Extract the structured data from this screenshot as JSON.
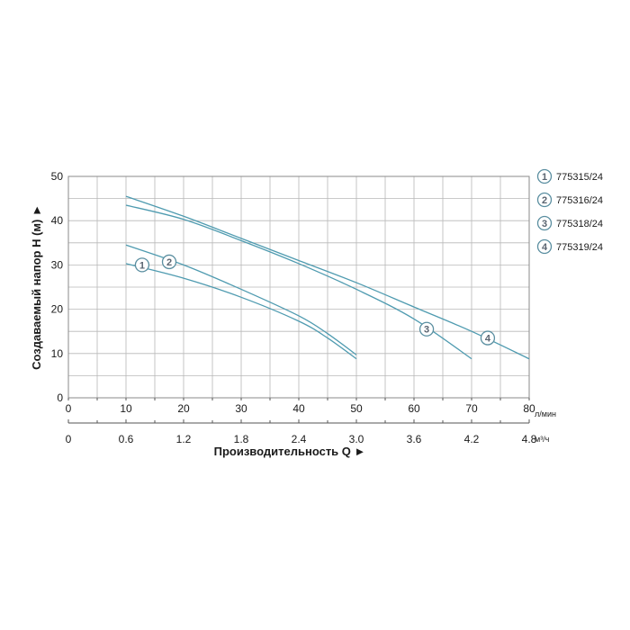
{
  "chart_data": {
    "type": "line",
    "ylabel": "Создаваемый напор Н (м) ►",
    "xlabel": "Производительность Q ►",
    "x_unit_primary": "л/мин",
    "x_unit_secondary": "м³/ч",
    "xlim": [
      0,
      80
    ],
    "ylim": [
      0,
      50
    ],
    "x_ticks_primary": [
      "0",
      "10",
      "20",
      "30",
      "40",
      "50",
      "60",
      "70",
      "80"
    ],
    "x_ticks_secondary": [
      "0",
      "0.6",
      "1.2",
      "1.8",
      "2.4",
      "3.0",
      "3.6",
      "4.2",
      "4.8"
    ],
    "x_ticks_secondary_values": [
      0,
      10,
      20,
      30,
      40,
      50,
      60,
      70,
      80
    ],
    "y_ticks": [
      "0",
      "10",
      "20",
      "30",
      "40",
      "50"
    ],
    "grid": true,
    "legend_position": "right",
    "colors": {
      "curve": "#4f9bb0",
      "marker_stroke": "#5a8ea0",
      "grid": "#b8b8b8"
    },
    "series": [
      {
        "name": "775315/24",
        "marker": "1",
        "marker_at": [
          12.8,
          30.0
        ],
        "x": [
          10,
          20,
          30,
          40,
          45,
          50
        ],
        "y": [
          30.3,
          27.0,
          22.7,
          17.3,
          13.5,
          8.8
        ]
      },
      {
        "name": "775316/24",
        "marker": "2",
        "marker_at": [
          17.5,
          30.7
        ],
        "x": [
          10,
          20,
          30,
          40,
          45,
          50
        ],
        "y": [
          34.5,
          30.0,
          24.5,
          18.5,
          14.5,
          9.7
        ]
      },
      {
        "name": "775318/24",
        "marker": "3",
        "marker_at": [
          62.2,
          15.5
        ],
        "x": [
          10,
          20,
          30,
          40,
          50,
          60,
          70
        ],
        "y": [
          43.5,
          40.3,
          35.5,
          30.3,
          24.5,
          17.8,
          8.8
        ]
      },
      {
        "name": "775319/24",
        "marker": "4",
        "marker_at": [
          72.8,
          13.5
        ],
        "x": [
          10,
          20,
          30,
          40,
          50,
          60,
          70,
          80
        ],
        "y": [
          45.5,
          41.0,
          36.0,
          31.0,
          26.0,
          20.5,
          15.0,
          8.8
        ]
      }
    ]
  }
}
